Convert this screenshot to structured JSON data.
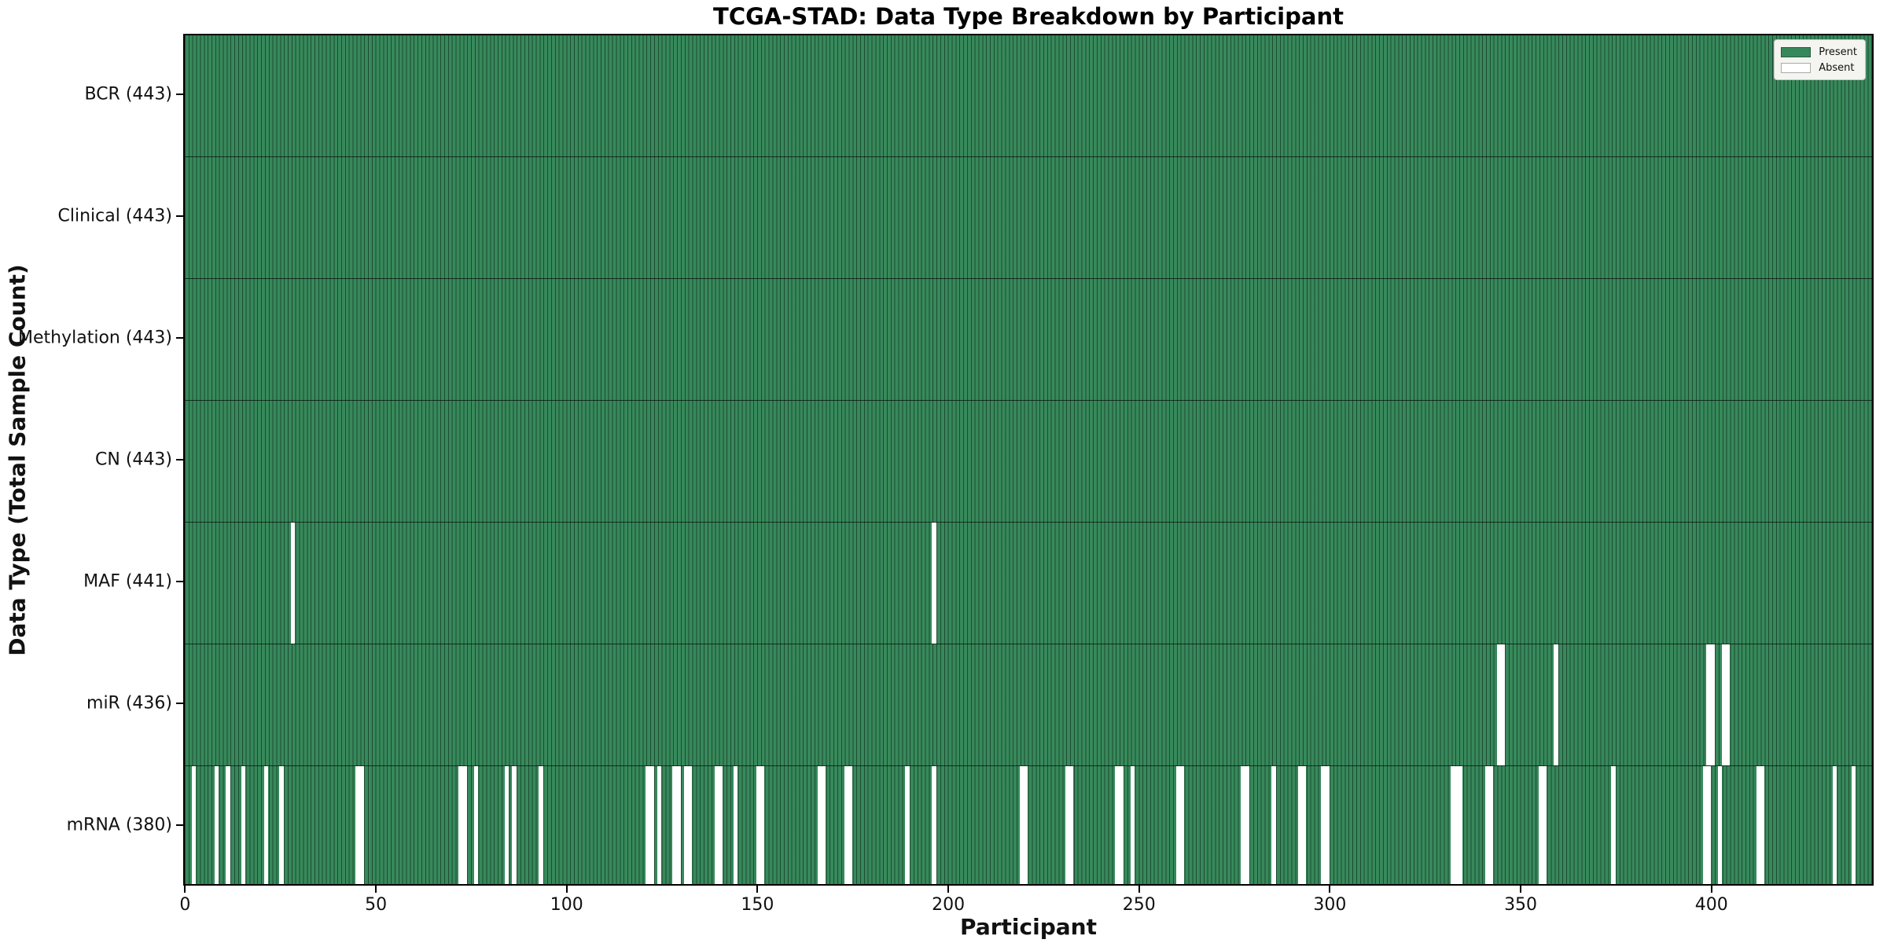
{
  "title": "TCGA-STAD: Data Type Breakdown by Participant",
  "xlabel": "Participant",
  "ylabel": "Data Type (Total Sample Count)",
  "colors": {
    "present": "#37895B",
    "cell_edge": "rgba(0,0,0,0.45)",
    "absent": "#FFFFFF",
    "plot_border": "#000000",
    "legend_bg": "#F4F4F0"
  },
  "legend": {
    "entries": [
      {
        "label": "Present",
        "color": "#37895B",
        "border": "#2a5c3c"
      },
      {
        "label": "Absent",
        "color": "#FFFFFF",
        "border": "#aaaaaa"
      }
    ]
  },
  "chart_data": {
    "type": "heatmap",
    "title": "TCGA-STAD: Data Type Breakdown by Participant",
    "xlabel": "Participant",
    "ylabel": "Data Type (Total Sample Count)",
    "n_participants": 443,
    "x_ticks": [
      0,
      50,
      100,
      150,
      200,
      250,
      300,
      350,
      400
    ],
    "legend_position": "upper right",
    "cell_states": {
      "present": 1,
      "absent": 0
    },
    "rows": [
      {
        "label": "BCR (443)",
        "name": "BCR",
        "present_count": 443,
        "absent_participants": []
      },
      {
        "label": "Clinical (443)",
        "name": "Clinical",
        "present_count": 443,
        "absent_participants": []
      },
      {
        "label": "Methylation (443)",
        "name": "Methylation",
        "present_count": 443,
        "absent_participants": []
      },
      {
        "label": "CN (443)",
        "name": "CN",
        "present_count": 443,
        "absent_participants": []
      },
      {
        "label": "MAF (441)",
        "name": "MAF",
        "present_count": 441,
        "absent_participants": [
          28,
          196
        ]
      },
      {
        "label": "miR (436)",
        "name": "miR",
        "present_count": 436,
        "absent_participants": [
          344,
          345,
          359,
          399,
          400,
          403,
          404
        ]
      },
      {
        "label": "mRNA (380)",
        "name": "mRNA",
        "present_count": 380,
        "absent_participants": [
          2,
          8,
          11,
          15,
          21,
          25,
          45,
          46,
          72,
          73,
          76,
          84,
          86,
          93,
          121,
          122,
          124,
          128,
          129,
          131,
          132,
          139,
          140,
          144,
          150,
          151,
          166,
          167,
          173,
          174,
          189,
          196,
          219,
          220,
          231,
          232,
          244,
          245,
          248,
          260,
          261,
          277,
          278,
          285,
          292,
          293,
          298,
          299,
          332,
          333,
          334,
          341,
          342,
          355,
          356,
          374,
          398,
          399,
          402,
          412,
          413,
          432,
          437
        ]
      }
    ]
  }
}
